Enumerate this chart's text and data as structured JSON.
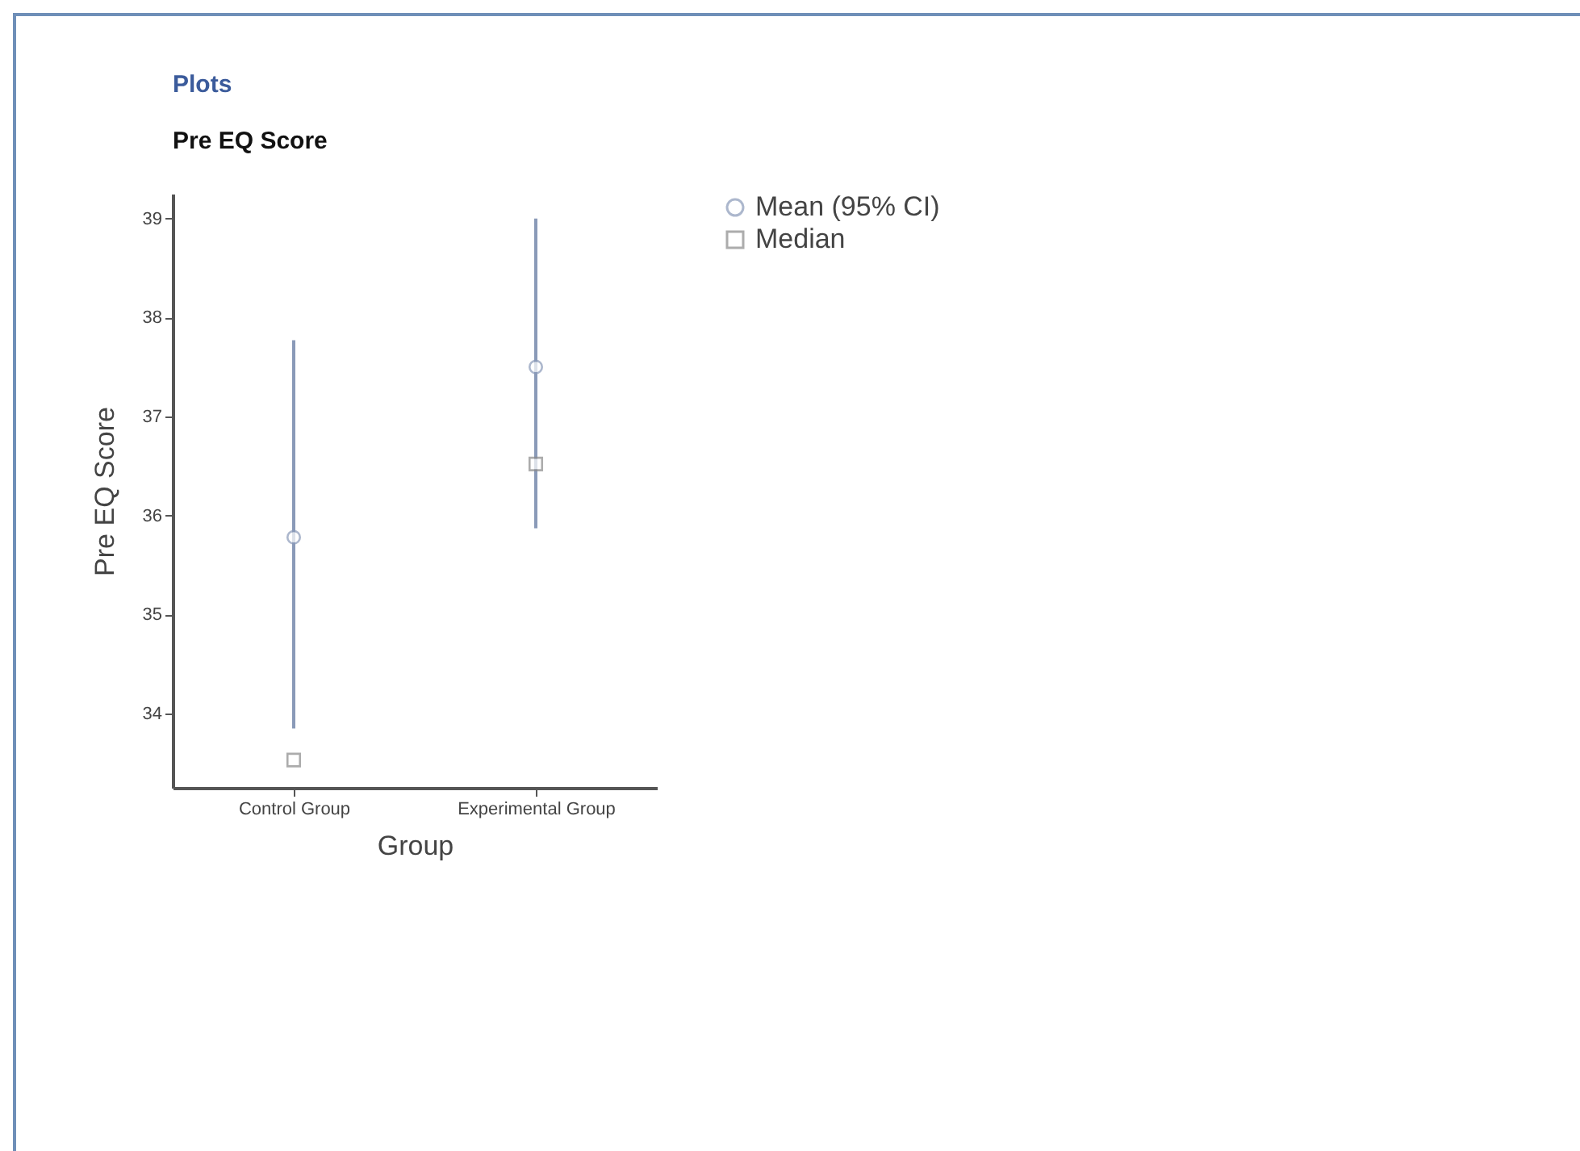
{
  "chart_data": {
    "type": "scatter",
    "title": "Plots",
    "subtitle": "Pre EQ Score",
    "xlabel": "Group",
    "ylabel": "Pre EQ Score",
    "categories": [
      "Control Group",
      "Experimental Group"
    ],
    "series": [
      {
        "name": "Mean (95% CI)",
        "color": "#8a9ab8",
        "marker": "circle",
        "values": [
          35.78,
          37.5
        ],
        "errors": [
          [
            33.85,
            37.77
          ],
          [
            35.87,
            39.0
          ]
        ]
      },
      {
        "name": "Median",
        "color": "#8a8a8a",
        "marker": "square",
        "values": [
          33.53,
          36.52
        ]
      }
    ],
    "ylim": [
      33.25,
      39.25
    ],
    "yticks": [
      34,
      35,
      36,
      37,
      38,
      39
    ],
    "grid": false,
    "legend": "right"
  }
}
